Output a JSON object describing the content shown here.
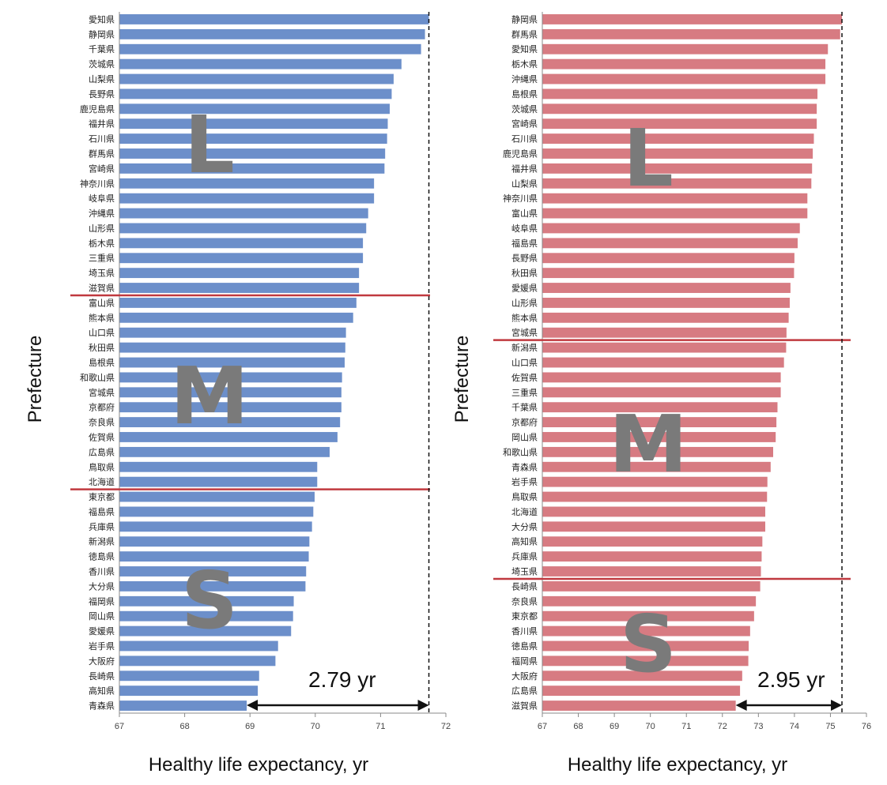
{
  "chart_data": [
    {
      "type": "bar",
      "orientation": "horizontal",
      "color": "#6c8fca",
      "xlabel": "Healthy life expectancy, yr",
      "ylabel": "Prefecture",
      "xlim": [
        67,
        72
      ],
      "xticks": [
        "67",
        "68",
        "69",
        "70",
        "71",
        "72"
      ],
      "categories": [
        "愛知県",
        "静岡県",
        "千葉県",
        "茨城県",
        "山梨県",
        "長野県",
        "鹿児島県",
        "福井県",
        "石川県",
        "群馬県",
        "宮崎県",
        "神奈川県",
        "岐阜県",
        "沖縄県",
        "山形県",
        "栃木県",
        "三重県",
        "埼玉県",
        "滋賀県",
        "富山県",
        "熊本県",
        "山口県",
        "秋田県",
        "島根県",
        "和歌山県",
        "宮城県",
        "京都府",
        "奈良県",
        "佐賀県",
        "広島県",
        "鳥取県",
        "北海道",
        "東京都",
        "福島県",
        "兵庫県",
        "新潟県",
        "徳島県",
        "香川県",
        "大分県",
        "福岡県",
        "岡山県",
        "愛媛県",
        "岩手県",
        "大阪府",
        "長崎県",
        "高知県",
        "青森県"
      ],
      "values": [
        71.74,
        71.68,
        71.62,
        71.32,
        71.2,
        71.17,
        71.14,
        71.11,
        71.1,
        71.07,
        71.06,
        70.9,
        70.9,
        70.81,
        70.78,
        70.73,
        70.73,
        70.67,
        70.67,
        70.63,
        70.58,
        70.47,
        70.46,
        70.45,
        70.41,
        70.4,
        70.4,
        70.38,
        70.34,
        70.22,
        70.03,
        70.03,
        69.99,
        69.97,
        69.95,
        69.91,
        69.9,
        69.86,
        69.85,
        69.67,
        69.66,
        69.63,
        69.43,
        69.39,
        69.14,
        69.12,
        68.95
      ],
      "groups": [
        {
          "label": "L",
          "count": 19
        },
        {
          "label": "M",
          "count": 13
        },
        {
          "label": "S",
          "count": 15
        }
      ],
      "reference_value": 71.74,
      "annotation": "2.79 yr",
      "range": [
        68.95,
        71.74
      ]
    },
    {
      "type": "bar",
      "orientation": "horizontal",
      "color": "#d77b82",
      "xlabel": "Healthy life expectancy, yr",
      "ylabel": "Prefecture",
      "xlim": [
        67,
        76
      ],
      "xticks": [
        "67",
        "68",
        "69",
        "70",
        "71",
        "72",
        "73",
        "74",
        "75",
        "76"
      ],
      "categories": [
        "静岡県",
        "群馬県",
        "愛知県",
        "栃木県",
        "沖縄県",
        "島根県",
        "茨城県",
        "宮崎県",
        "石川県",
        "鹿児島県",
        "福井県",
        "山梨県",
        "神奈川県",
        "富山県",
        "岐阜県",
        "福島県",
        "長野県",
        "秋田県",
        "愛媛県",
        "山形県",
        "熊本県",
        "宮城県",
        "新潟県",
        "山口県",
        "佐賀県",
        "三重県",
        "千葉県",
        "京都府",
        "岡山県",
        "和歌山県",
        "青森県",
        "岩手県",
        "鳥取県",
        "北海道",
        "大分県",
        "高知県",
        "兵庫県",
        "埼玉県",
        "長崎県",
        "奈良県",
        "東京都",
        "香川県",
        "徳島県",
        "福岡県",
        "大阪府",
        "広島県",
        "滋賀県"
      ],
      "values": [
        75.32,
        75.27,
        74.93,
        74.86,
        74.86,
        74.64,
        74.62,
        74.62,
        74.54,
        74.51,
        74.49,
        74.47,
        74.36,
        74.36,
        74.15,
        74.09,
        74.0,
        73.99,
        73.89,
        73.87,
        73.84,
        73.78,
        73.77,
        73.71,
        73.62,
        73.62,
        73.53,
        73.5,
        73.48,
        73.41,
        73.34,
        73.25,
        73.24,
        73.19,
        73.19,
        73.11,
        73.09,
        73.07,
        73.05,
        72.93,
        72.88,
        72.77,
        72.73,
        72.72,
        72.55,
        72.49,
        72.37
      ],
      "groups": [
        {
          "label": "L",
          "count": 22
        },
        {
          "label": "M",
          "count": 16
        },
        {
          "label": "S",
          "count": 9
        }
      ],
      "reference_value": 75.32,
      "annotation": "2.95 yr",
      "range": [
        72.37,
        75.32
      ]
    }
  ]
}
